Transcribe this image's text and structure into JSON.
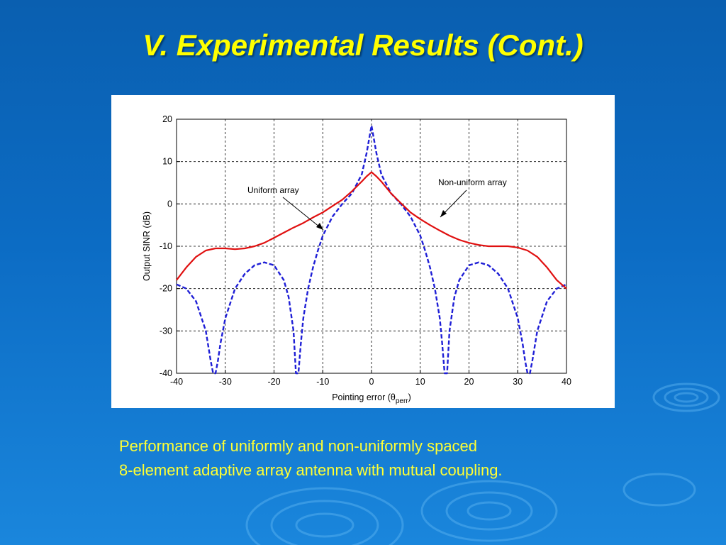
{
  "slide": {
    "title": "V. Experimental Results (Cont.)",
    "caption_line1": "Performance of uniformly and non-uniformly spaced",
    "caption_line2": "8-element adaptive array antenna with mutual coupling."
  },
  "colors": {
    "background": "#0c6cc4",
    "title": "#ffff00",
    "caption": "#ffff33",
    "uniform_series": "#1f1fd6",
    "nonuniform_series": "#e01010"
  },
  "chart_data": {
    "type": "line",
    "title": "",
    "xlabel": "Pointing error (θ",
    "xlabel_sub": "perr",
    "xlabel_end": ")",
    "ylabel": "Output SINR (dB)",
    "xlim": [
      -40,
      40
    ],
    "ylim": [
      -40,
      20
    ],
    "xticks": [
      -40,
      -30,
      -20,
      -10,
      0,
      10,
      20,
      30,
      40
    ],
    "yticks": [
      20,
      10,
      0,
      -10,
      -20,
      -30,
      -40
    ],
    "grid": true,
    "series": [
      {
        "name": "Uniform array",
        "style": "dashed",
        "color": "#1f1fd6",
        "x": [
          -40,
          -38,
          -36,
          -34,
          -33,
          -32.5,
          -32,
          -31.5,
          -31,
          -30,
          -28,
          -26,
          -24,
          -22,
          -20,
          -18,
          -17,
          -16,
          -15.5,
          -15,
          -14.5,
          -14,
          -13,
          -12,
          -11,
          -10,
          -8,
          -6,
          -4,
          -2,
          -1,
          0,
          1,
          2,
          4,
          6,
          8,
          10,
          11,
          12,
          13,
          14,
          14.5,
          15,
          15.5,
          16,
          17,
          18,
          20,
          22,
          24,
          26,
          28,
          30,
          31,
          31.5,
          32,
          32.5,
          33,
          34,
          36,
          38,
          40
        ],
        "y": [
          -19,
          -20,
          -23,
          -30,
          -37,
          -40,
          -40,
          -37,
          -33,
          -27,
          -20,
          -16.5,
          -14.5,
          -13.8,
          -14.5,
          -18,
          -22,
          -30,
          -40,
          -40,
          -33,
          -27,
          -20,
          -15,
          -11,
          -7.5,
          -3,
          0,
          2.5,
          7,
          12,
          18.5,
          12,
          7,
          2.5,
          0,
          -3,
          -7.5,
          -11,
          -15,
          -20,
          -27,
          -33,
          -40,
          -40,
          -30,
          -22,
          -18,
          -14.5,
          -13.8,
          -14.5,
          -16.5,
          -20,
          -27,
          -33,
          -37,
          -40,
          -40,
          -37,
          -30,
          -23,
          -20,
          -19
        ]
      },
      {
        "name": "Non-uniform array",
        "style": "solid",
        "color": "#e01010",
        "x": [
          -40,
          -38,
          -36,
          -34,
          -32,
          -30,
          -28,
          -26,
          -24,
          -22,
          -20,
          -18,
          -16,
          -14,
          -12,
          -10,
          -8,
          -6,
          -4,
          -2,
          -1,
          0,
          1,
          2,
          4,
          6,
          8,
          10,
          12,
          14,
          16,
          18,
          20,
          22,
          24,
          26,
          28,
          30,
          32,
          34,
          36,
          38,
          40
        ],
        "y": [
          -18,
          -15,
          -12.5,
          -11,
          -10.5,
          -10.5,
          -10.7,
          -10.5,
          -10,
          -9.2,
          -8,
          -6.8,
          -5.6,
          -4.5,
          -3.2,
          -2,
          -0.5,
          1,
          3,
          5.3,
          6.5,
          7.5,
          6.5,
          5.3,
          2.5,
          0.2,
          -2,
          -3.6,
          -5,
          -6.3,
          -7.5,
          -8.5,
          -9.2,
          -9.7,
          -10,
          -10,
          -10,
          -10.3,
          -11,
          -12.5,
          -15,
          -18,
          -20
        ]
      }
    ],
    "annotations": [
      {
        "text": "Uniform array",
        "points_to": [
          -10,
          -6.3
        ]
      },
      {
        "text": "Non-uniform array",
        "points_to": [
          14,
          -3.3
        ]
      }
    ]
  }
}
